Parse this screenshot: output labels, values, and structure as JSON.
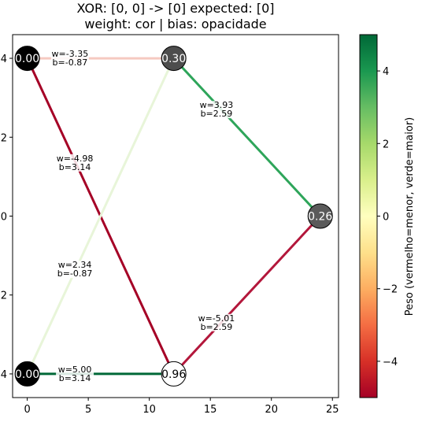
{
  "title_line1": "XOR: [0, 0] -> [0] expected: [0]",
  "title_line2": "weight: cor | bias: opacidade",
  "colorbar": {
    "label": "Peso (vermelho=menor, verde=maior)",
    "min": -5,
    "max": 5,
    "ticks": [
      "4",
      "2",
      "0",
      "−2",
      "−4"
    ],
    "tick_values": [
      4,
      2,
      0,
      -2,
      -4
    ],
    "colormap": "RdYlGn"
  },
  "axes": {
    "x_ticks": [
      "0",
      "5",
      "10",
      "15",
      "20",
      "25"
    ],
    "x_tick_values": [
      0,
      5,
      10,
      15,
      20,
      25
    ],
    "y_ticks": [
      "4",
      "2",
      "0",
      "2",
      "4"
    ],
    "y_tick_values": [
      4,
      2,
      0,
      -2,
      -4
    ],
    "xlim": [
      -1.2,
      25.5
    ],
    "ylim": [
      -4.6,
      4.6
    ]
  },
  "nodes": [
    {
      "id": "in0",
      "x": 0,
      "y": 4,
      "value": "0.00",
      "fill": "#000000",
      "text_color": "#ffffff"
    },
    {
      "id": "in1",
      "x": 0,
      "y": -4,
      "value": "0.00",
      "fill": "#000000",
      "text_color": "#ffffff"
    },
    {
      "id": "h0",
      "x": 12,
      "y": 4,
      "value": "0.30",
      "fill": "#4d4d4d",
      "text_color": "#ffffff"
    },
    {
      "id": "h1",
      "x": 12,
      "y": -4,
      "value": "0.96",
      "fill": "#ffffff",
      "text_color": "#000000"
    },
    {
      "id": "out",
      "x": 24,
      "y": 0,
      "value": "0.26",
      "fill": "#5a5a5a",
      "text_color": "#ffffff"
    }
  ],
  "edges": [
    {
      "from": "in0",
      "to": "h0",
      "w_label": "w=-3.35",
      "b_label": "b=-0.87",
      "color": "#f5c9c0",
      "label_pos": [
        3.5,
        4.0
      ]
    },
    {
      "from": "in0",
      "to": "h1",
      "w_label": "w=-4.98",
      "b_label": "b=3.14",
      "color": "#a50026",
      "label_pos": [
        3.9,
        1.35
      ]
    },
    {
      "from": "in1",
      "to": "h0",
      "w_label": "w=2.34",
      "b_label": "b=-0.87",
      "color": "#e8f5d9",
      "label_pos": [
        3.9,
        -1.35
      ]
    },
    {
      "from": "in1",
      "to": "h1",
      "w_label": "w=5.00",
      "b_label": "b=3.14",
      "color": "#006837",
      "label_pos": [
        3.9,
        -4.0
      ]
    },
    {
      "from": "h0",
      "to": "out",
      "w_label": "w=3.93",
      "b_label": "b=2.59",
      "color": "#2ea55a",
      "label_pos": [
        15.5,
        2.7
      ]
    },
    {
      "from": "h1",
      "to": "out",
      "w_label": "w=-5.01",
      "b_label": "b=2.59",
      "color": "#b3173b",
      "label_pos": [
        15.5,
        -2.7
      ]
    }
  ]
}
